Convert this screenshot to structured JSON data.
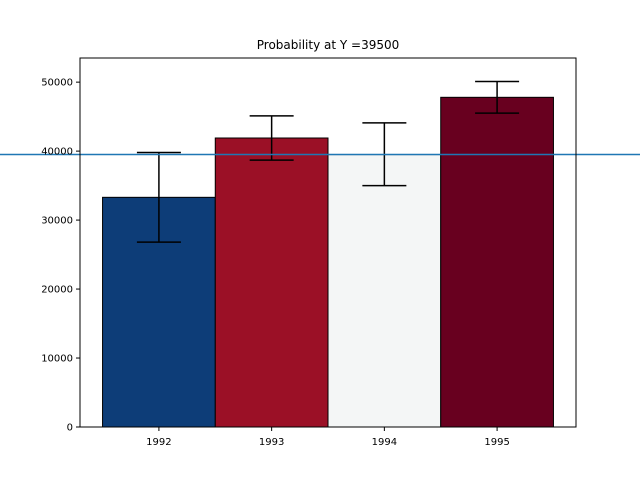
{
  "chart_data": {
    "type": "bar",
    "title": "Probability at Y =39500",
    "xlabel": "",
    "ylabel": "",
    "categories": [
      "1992",
      "1993",
      "1994",
      "1995"
    ],
    "values": [
      33300,
      41900,
      39500,
      47800
    ],
    "error_low": [
      26800,
      38700,
      35000,
      45500
    ],
    "error_high": [
      39800,
      45100,
      44100,
      50100
    ],
    "bar_colors": [
      "#0d3d78",
      "#9b1026",
      "#f4f6f6",
      "#68001f"
    ],
    "reference_line": {
      "y": 39500,
      "color": "#1f77b4"
    },
    "ylim": [
      0,
      53500
    ],
    "yticks": [
      0,
      10000,
      20000,
      30000,
      40000,
      50000
    ],
    "ytick_labels": [
      "0",
      "10000",
      "20000",
      "30000",
      "40000",
      "50000"
    ],
    "grid": false,
    "legend": "none"
  }
}
